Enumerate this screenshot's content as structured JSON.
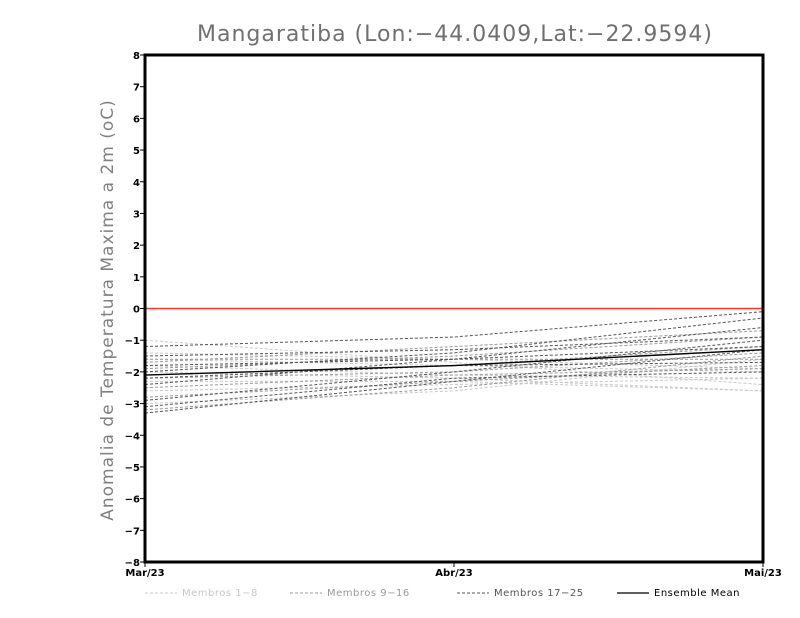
{
  "chart_data": {
    "type": "line",
    "title": "Mangaratiba (Lon:−44.0409,Lat:−22.9594)",
    "ylabel": "Anomalia de Temperatura Maxima a 2m (oC)",
    "xlabel": "",
    "x": [
      "Mar/23",
      "Abr/23",
      "Mai/23"
    ],
    "ylim": [
      -8,
      8
    ],
    "yticks": [
      {
        "value": 8,
        "label": "8"
      },
      {
        "value": 7,
        "label": "7"
      },
      {
        "value": 6,
        "label": "6"
      },
      {
        "value": 5,
        "label": "5"
      },
      {
        "value": 4,
        "label": "4"
      },
      {
        "value": 3,
        "label": "3"
      },
      {
        "value": 2,
        "label": "2"
      },
      {
        "value": 1,
        "label": "1"
      },
      {
        "value": 0,
        "label": "0"
      },
      {
        "value": -1,
        "label": "−1"
      },
      {
        "value": -2,
        "label": "−2"
      },
      {
        "value": -3,
        "label": "−3"
      },
      {
        "value": -4,
        "label": "−4"
      },
      {
        "value": -5,
        "label": "−5"
      },
      {
        "value": -6,
        "label": "−6"
      },
      {
        "value": -7,
        "label": "−7"
      },
      {
        "value": -8,
        "label": "−8"
      }
    ],
    "reference_line": {
      "value": 0,
      "color": "#ff3b30"
    },
    "groups": [
      {
        "name": "Membros 1−8",
        "color": "#c8c8c8",
        "members": [
          [
            -1.0,
            -1.7,
            -2.4
          ],
          [
            -1.8,
            -2.1,
            -2.2
          ],
          [
            -2.3,
            -2.3,
            -2.6
          ],
          [
            -3.0,
            -2.6,
            -1.6
          ],
          [
            -1.6,
            -1.8,
            -2.0
          ],
          [
            -2.6,
            -2.4,
            -2.2
          ],
          [
            -1.4,
            -1.6,
            -1.9
          ],
          [
            -2.0,
            -2.2,
            -2.6
          ]
        ]
      },
      {
        "name": "Membros 9−16",
        "color": "#9a9a9a",
        "members": [
          [
            -1.7,
            -1.2,
            -0.7
          ],
          [
            -2.1,
            -1.8,
            -1.2
          ],
          [
            -2.5,
            -2.1,
            -1.9
          ],
          [
            -3.2,
            -2.5,
            -1.5
          ],
          [
            -1.9,
            -1.5,
            -0.9
          ],
          [
            -2.8,
            -2.3,
            -1.8
          ],
          [
            -2.2,
            -2.0,
            -1.4
          ],
          [
            -1.6,
            -1.6,
            -1.6
          ]
        ]
      },
      {
        "name": "Membros 17−25",
        "color": "#555555",
        "members": [
          [
            -1.2,
            -0.9,
            -0.1
          ],
          [
            -2.0,
            -1.4,
            -0.3
          ],
          [
            -2.4,
            -1.6,
            -0.6
          ],
          [
            -2.9,
            -2.0,
            -1.0
          ],
          [
            -3.3,
            -2.3,
            -1.3
          ],
          [
            -1.8,
            -1.6,
            -1.2
          ],
          [
            -2.2,
            -1.8,
            -1.7
          ],
          [
            -3.1,
            -2.2,
            -2.0
          ],
          [
            -1.5,
            -1.3,
            -0.9
          ]
        ]
      }
    ],
    "ensemble_mean": {
      "name": "Ensemble Mean",
      "color": "#000000",
      "values": [
        -2.1,
        -1.8,
        -1.3
      ]
    }
  }
}
